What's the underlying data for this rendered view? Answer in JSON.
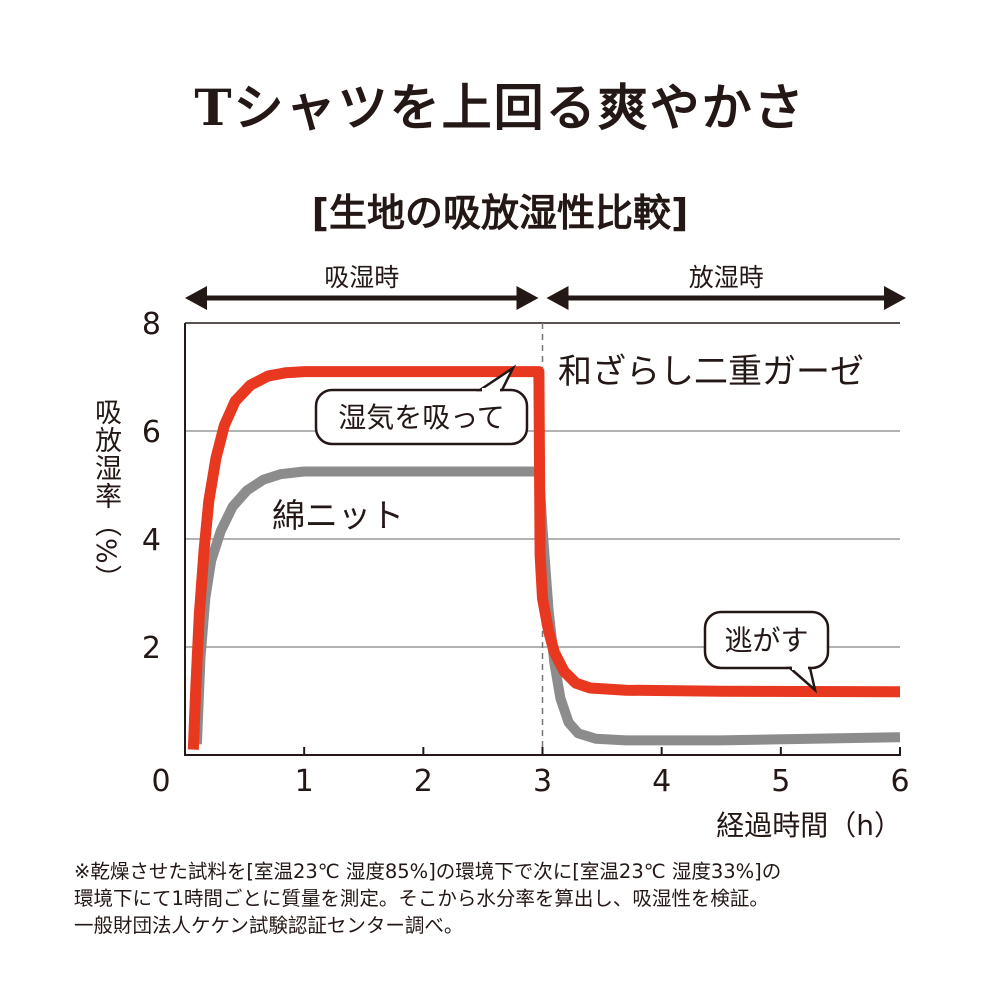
{
  "title": "Tシャツを上回る爽やかさ",
  "subtitle": "[生地の吸放湿性比較]",
  "phases": [
    {
      "label": "吸湿時",
      "from": 0,
      "to": 3
    },
    {
      "label": "放湿時",
      "from": 3,
      "to": 6
    }
  ],
  "callouts": [
    {
      "text": "湿気を吸って",
      "series": "和ざらし二重ガーゼ",
      "x": 2.8,
      "y": 7.1
    },
    {
      "text": "逃がす",
      "series": "和ざらし二重ガーゼ",
      "x": 5.25,
      "y": 1.17
    }
  ],
  "notes": [
    "※乾燥させた試料を[室温23℃ 湿度85%]の環境下で次に[室温23℃ 湿度33%]の",
    "環境下にて1時間ごとに質量を測定。そこから水分率を算出し、吸湿性を検証。",
    "一般財団法人ケケン試験認証センター調べ。"
  ],
  "chart_data": {
    "type": "line",
    "title": "[生地の吸放湿性比較]",
    "xlabel": "経過時間（h）",
    "ylabel": "吸放湿率（%）",
    "xlim": [
      0,
      6
    ],
    "ylim": [
      0,
      8
    ],
    "xticks": [
      "0",
      "1",
      "2",
      "3",
      "4",
      "5",
      "6"
    ],
    "yticks": [
      "2",
      "4",
      "6",
      "8"
    ],
    "grid": true,
    "divider_x": 3,
    "series": [
      {
        "name": "和ざらし二重ガーゼ",
        "color": "#e8381f",
        "x": [
          0.07,
          0.09,
          0.12,
          0.16,
          0.2,
          0.26,
          0.33,
          0.42,
          0.55,
          0.7,
          0.85,
          1.0,
          2.0,
          2.97,
          2.98,
          3.0,
          3.05,
          3.1,
          3.18,
          3.28,
          3.4,
          3.7,
          4.5,
          6.0
        ],
        "y": [
          0.1,
          1.2,
          2.6,
          3.8,
          4.7,
          5.5,
          6.1,
          6.55,
          6.85,
          7.02,
          7.08,
          7.1,
          7.1,
          7.1,
          3.7,
          2.9,
          2.3,
          1.9,
          1.55,
          1.33,
          1.24,
          1.2,
          1.18,
          1.17
        ]
      },
      {
        "name": "綿ニット",
        "color": "#8c8c8c",
        "x": [
          0.1,
          0.13,
          0.17,
          0.22,
          0.3,
          0.4,
          0.52,
          0.66,
          0.8,
          1.0,
          2.0,
          2.97,
          3.0,
          3.05,
          3.1,
          3.15,
          3.22,
          3.3,
          3.45,
          3.7,
          4.5,
          6.0
        ],
        "y": [
          0.2,
          1.8,
          2.9,
          3.6,
          4.15,
          4.6,
          4.9,
          5.1,
          5.2,
          5.25,
          5.25,
          5.25,
          4.2,
          2.7,
          1.7,
          1.05,
          0.6,
          0.4,
          0.3,
          0.27,
          0.27,
          0.33
        ]
      }
    ]
  }
}
